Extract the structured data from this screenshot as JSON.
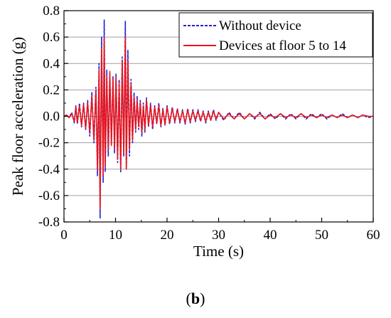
{
  "caption": {
    "open": "(",
    "letter": "b",
    "close": ")"
  },
  "chart_data": {
    "type": "line",
    "title": "",
    "xlabel": "Time (s)",
    "ylabel": "Peak floor acceleration (g)",
    "xlim": [
      0,
      60
    ],
    "ylim": [
      -0.8,
      0.8
    ],
    "xticks": [
      0,
      10,
      20,
      30,
      40,
      50,
      60
    ],
    "yticks": [
      -0.8,
      -0.6,
      -0.4,
      -0.2,
      0.0,
      0.2,
      0.4,
      0.6,
      0.8
    ],
    "xtick_labels": [
      "0",
      "10",
      "20",
      "30",
      "40",
      "50",
      "60"
    ],
    "ytick_labels": [
      "-0.8",
      "-0.6",
      "-0.4",
      "-0.2",
      "0.0",
      "0.2",
      "0.4",
      "0.6",
      "0.8"
    ],
    "grid": "horizontal",
    "legend_position": "top-right",
    "series": [
      {
        "name": "Without device",
        "color": "#1f1fd6",
        "style": "dashed",
        "x": [
          0,
          0.5,
          1.0,
          1.5,
          2.0,
          2.3,
          2.6,
          3.0,
          3.4,
          3.8,
          4.2,
          4.6,
          5.0,
          5.4,
          5.8,
          6.2,
          6.5,
          6.8,
          7.0,
          7.3,
          7.6,
          7.8,
          8.0,
          8.3,
          8.6,
          8.9,
          9.2,
          9.5,
          9.8,
          10.1,
          10.4,
          10.7,
          11.0,
          11.3,
          11.6,
          11.9,
          12.1,
          12.4,
          12.7,
          13.0,
          13.3,
          13.6,
          13.9,
          14.2,
          14.5,
          14.8,
          15.1,
          15.4,
          15.7,
          16.0,
          16.4,
          16.8,
          17.2,
          17.6,
          18.0,
          18.4,
          18.8,
          19.2,
          19.6,
          20.0,
          20.5,
          21.0,
          21.5,
          22.0,
          22.5,
          23.0,
          23.5,
          24.0,
          24.5,
          25.0,
          25.5,
          26.0,
          26.5,
          27.0,
          27.5,
          28.0,
          28.5,
          29.0,
          29.5,
          30.0,
          31.0,
          32.0,
          33.0,
          34.0,
          35.0,
          36.0,
          37.0,
          38.0,
          39.0,
          40.0,
          41.0,
          42.0,
          43.0,
          44.0,
          45.0,
          46.0,
          47.0,
          48.0,
          49.0,
          50.0,
          51.0,
          52.0,
          53.0,
          54.0,
          55.0,
          56.0,
          57.0,
          58.0,
          59.0,
          60.0
        ],
        "values": [
          0.0,
          0.01,
          -0.01,
          0.03,
          -0.05,
          0.08,
          -0.06,
          0.1,
          -0.08,
          0.1,
          -0.1,
          0.12,
          -0.15,
          0.18,
          -0.2,
          0.22,
          -0.45,
          0.4,
          -0.77,
          0.6,
          -0.5,
          0.73,
          -0.42,
          0.35,
          -0.3,
          0.25,
          -0.2,
          0.3,
          -0.28,
          0.32,
          -0.35,
          0.28,
          -0.42,
          0.45,
          -0.3,
          0.72,
          -0.4,
          0.5,
          -0.3,
          0.28,
          -0.2,
          0.18,
          -0.12,
          0.15,
          -0.1,
          0.12,
          -0.15,
          0.1,
          -0.12,
          0.14,
          -0.08,
          0.1,
          -0.1,
          0.08,
          -0.06,
          0.1,
          -0.08,
          0.06,
          -0.07,
          0.08,
          -0.06,
          0.07,
          -0.05,
          0.06,
          -0.05,
          0.05,
          -0.06,
          0.06,
          -0.05,
          0.05,
          -0.04,
          0.05,
          -0.04,
          0.04,
          -0.05,
          0.04,
          -0.03,
          0.05,
          -0.03,
          0.03,
          -0.03,
          0.03,
          -0.02,
          0.03,
          -0.02,
          0.02,
          -0.02,
          0.03,
          -0.02,
          0.02,
          -0.02,
          0.02,
          -0.02,
          0.02,
          -0.02,
          0.02,
          -0.02,
          0.02,
          -0.01,
          0.02,
          -0.02,
          0.01,
          -0.01,
          0.02,
          -0.01,
          0.01,
          -0.01,
          0.01,
          -0.01,
          0.0
        ]
      },
      {
        "name": "Devices at floor 5 to 14",
        "color": "#e8141c",
        "style": "solid",
        "x": [
          0,
          0.5,
          1.0,
          1.5,
          2.0,
          2.3,
          2.6,
          3.0,
          3.4,
          3.8,
          4.2,
          4.6,
          5.0,
          5.4,
          5.8,
          6.2,
          6.5,
          6.8,
          7.0,
          7.3,
          7.6,
          7.8,
          8.0,
          8.3,
          8.6,
          8.9,
          9.2,
          9.5,
          9.8,
          10.1,
          10.4,
          10.7,
          11.0,
          11.3,
          11.6,
          11.9,
          12.1,
          12.4,
          12.7,
          13.0,
          13.3,
          13.6,
          13.9,
          14.2,
          14.5,
          14.8,
          15.1,
          15.4,
          15.7,
          16.0,
          16.4,
          16.8,
          17.2,
          17.6,
          18.0,
          18.4,
          18.8,
          19.2,
          19.6,
          20.0,
          20.5,
          21.0,
          21.5,
          22.0,
          22.5,
          23.0,
          23.5,
          24.0,
          24.5,
          25.0,
          25.5,
          26.0,
          26.5,
          27.0,
          27.5,
          28.0,
          28.5,
          29.0,
          29.5,
          30.0,
          31.0,
          32.0,
          33.0,
          34.0,
          35.0,
          36.0,
          37.0,
          38.0,
          39.0,
          40.0,
          41.0,
          42.0,
          43.0,
          44.0,
          45.0,
          46.0,
          47.0,
          48.0,
          49.0,
          50.0,
          51.0,
          52.0,
          53.0,
          54.0,
          55.0,
          56.0,
          57.0,
          58.0,
          59.0,
          60.0
        ],
        "values": [
          0.0,
          0.01,
          -0.01,
          0.02,
          -0.04,
          0.07,
          -0.05,
          0.08,
          -0.07,
          0.09,
          -0.09,
          0.1,
          -0.12,
          0.15,
          -0.18,
          0.2,
          -0.4,
          0.35,
          -0.7,
          0.52,
          -0.45,
          0.6,
          -0.38,
          0.3,
          -0.25,
          0.34,
          -0.22,
          0.28,
          -0.25,
          0.3,
          -0.32,
          0.25,
          -0.4,
          0.42,
          -0.28,
          0.6,
          -0.4,
          0.42,
          -0.25,
          0.25,
          -0.18,
          0.15,
          -0.1,
          0.12,
          -0.08,
          0.1,
          -0.12,
          0.08,
          -0.1,
          0.12,
          -0.07,
          0.08,
          -0.08,
          0.07,
          -0.05,
          0.08,
          -0.07,
          0.05,
          -0.06,
          0.07,
          -0.05,
          0.06,
          -0.04,
          0.05,
          -0.04,
          0.04,
          -0.05,
          0.05,
          -0.04,
          0.04,
          -0.03,
          0.04,
          -0.03,
          0.03,
          -0.04,
          0.03,
          -0.03,
          0.04,
          -0.02,
          0.03,
          -0.02,
          0.02,
          -0.02,
          0.02,
          -0.02,
          0.02,
          -0.01,
          0.02,
          -0.02,
          0.01,
          -0.01,
          0.02,
          -0.01,
          0.01,
          -0.01,
          0.02,
          -0.01,
          0.01,
          -0.01,
          0.01,
          -0.01,
          0.01,
          -0.01,
          0.01,
          -0.01,
          0.01,
          -0.01,
          0.01,
          0.0,
          0.0
        ]
      }
    ]
  }
}
